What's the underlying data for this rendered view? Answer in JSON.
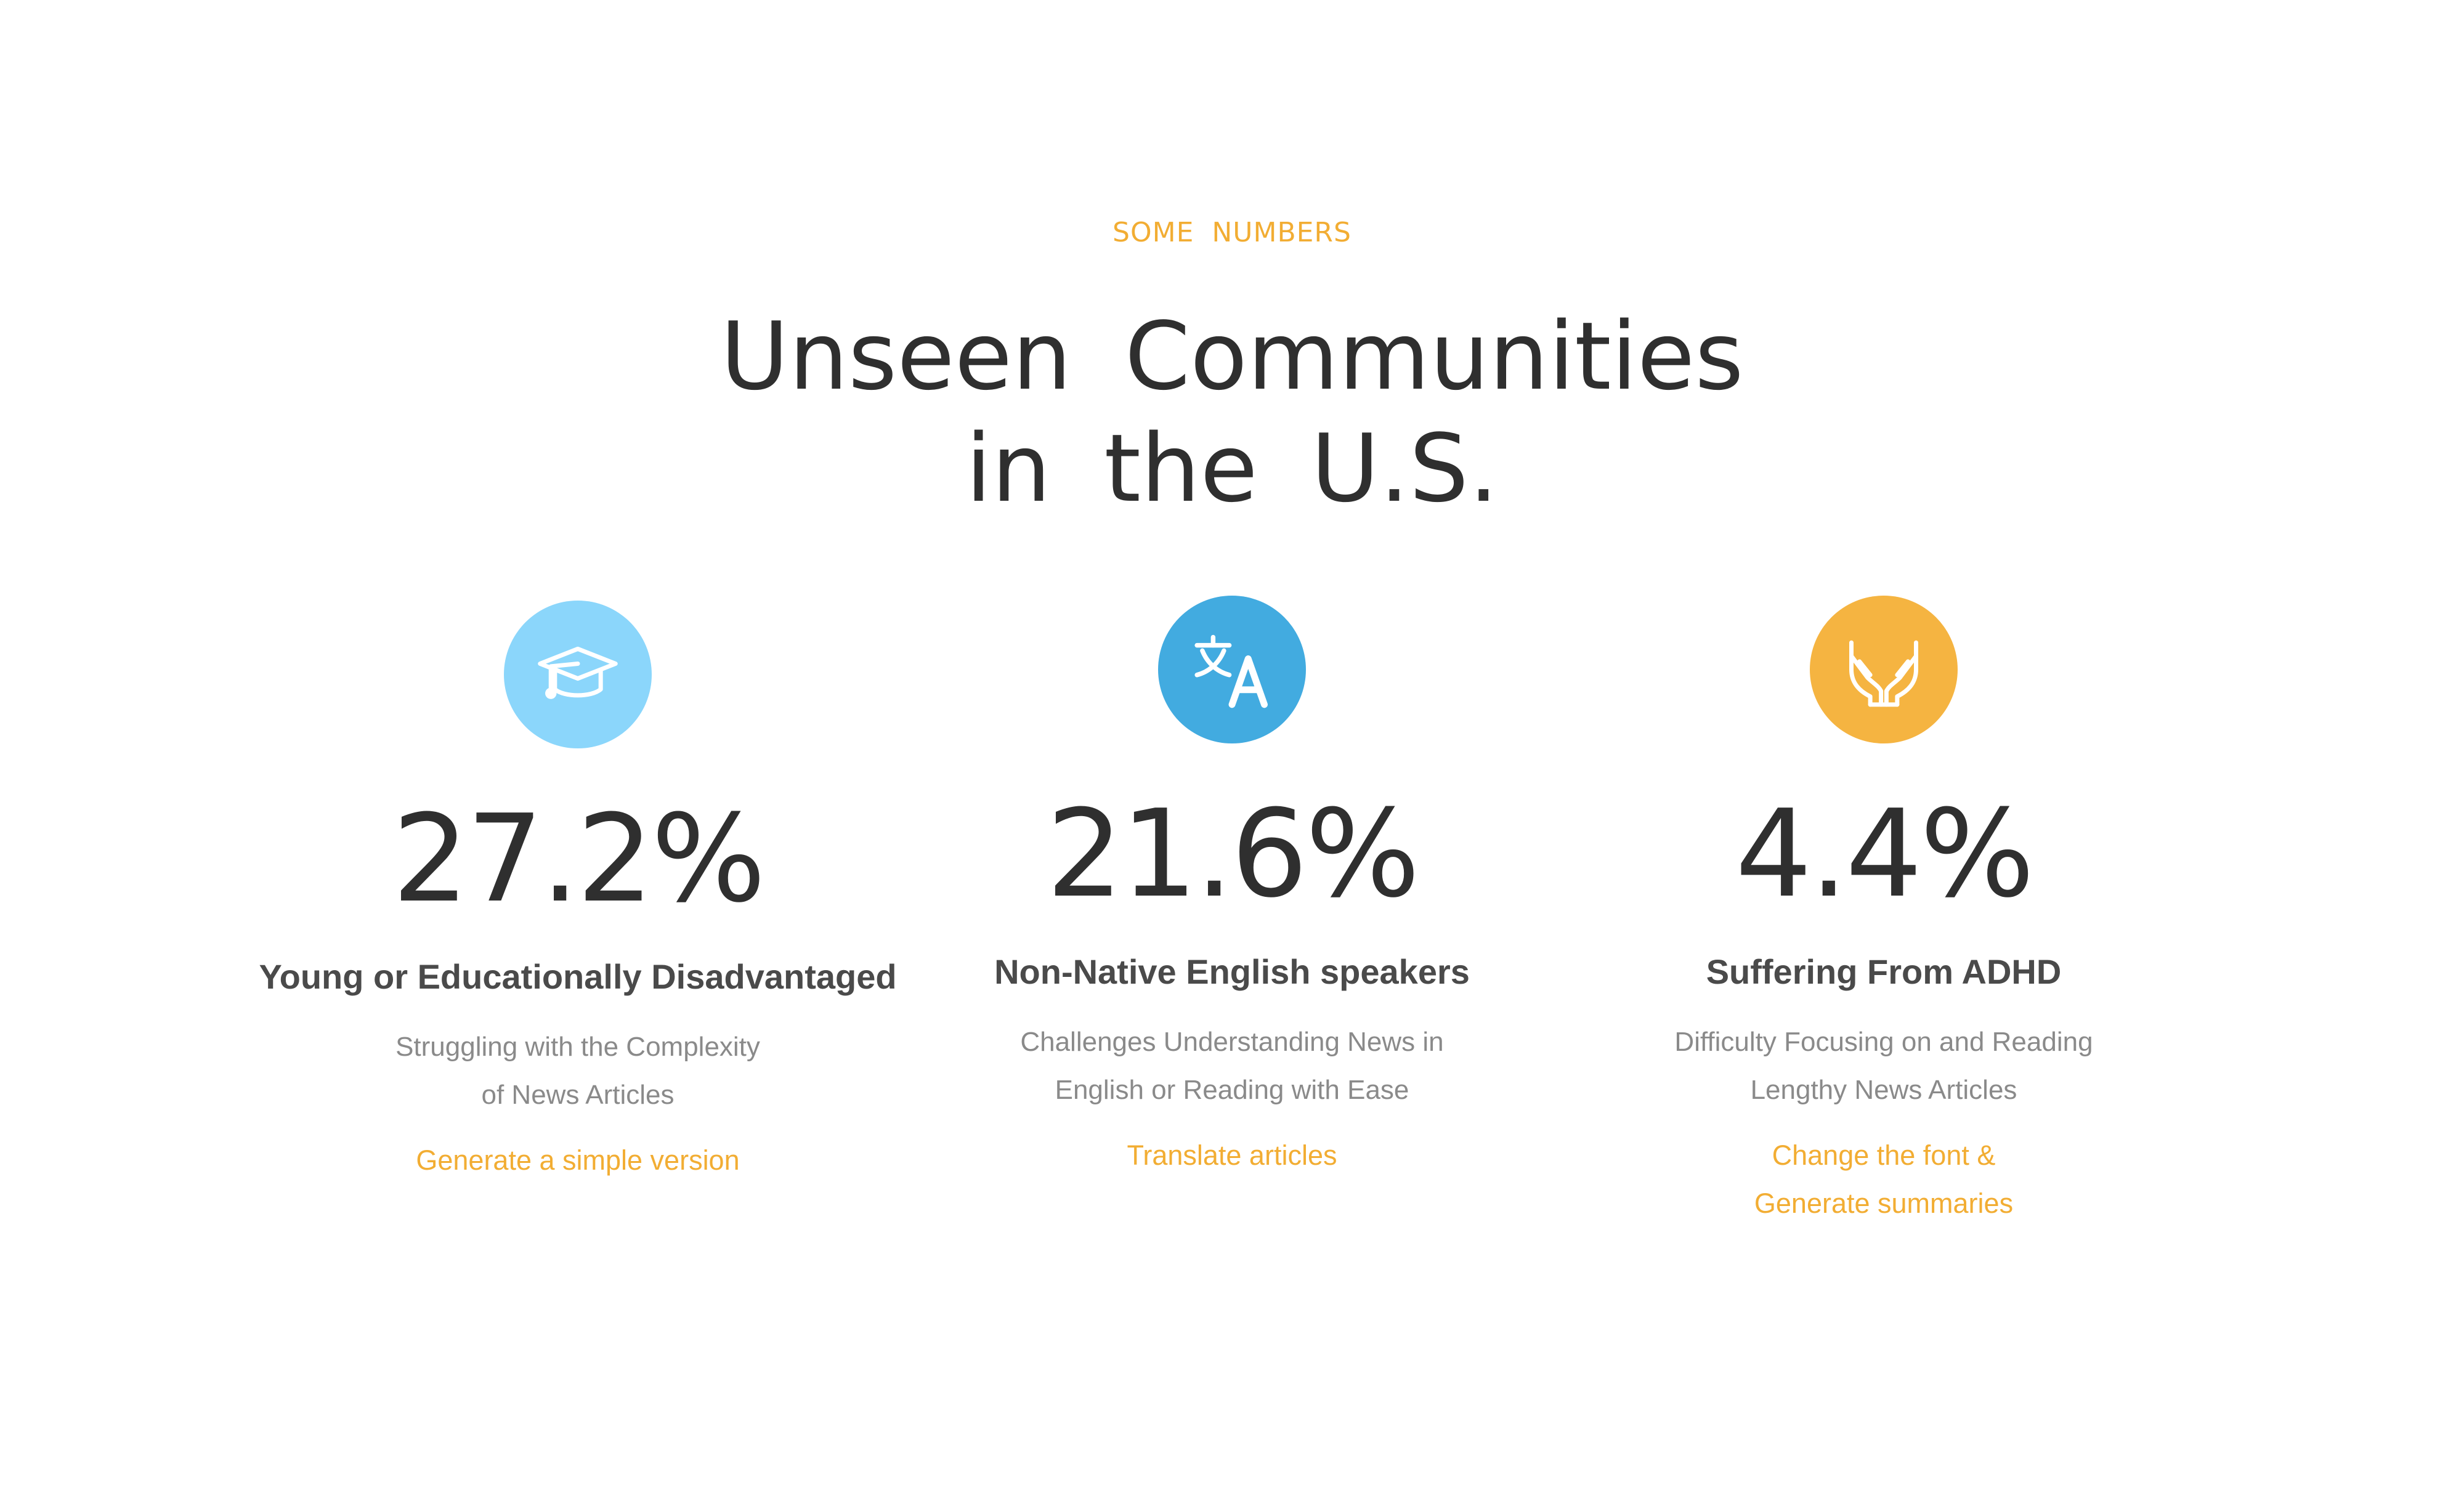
{
  "section": {
    "eyebrow": "SOME NUMBERS",
    "title_line1": "Unseen Communities",
    "title_line2": "in the U.S."
  },
  "colors": {
    "accent": "#f2ad33",
    "heading": "#2f2f2f",
    "muted": "#8a8a8a"
  },
  "stats": [
    {
      "icon": "graduation-cap-icon",
      "icon_color": "#8bd6fb",
      "value": "27.2%",
      "label": "Young or Educationally Disadvantaged",
      "desc_line1": "Struggling with the Complexity",
      "desc_line2": "of News Articles",
      "link_line1": "Generate a simple version",
      "link_line2": ""
    },
    {
      "icon": "translate-icon",
      "icon_color": "#42abe0",
      "value": "21.6%",
      "label": "Non-Native English speakers",
      "desc_line1": "Challenges Understanding News in",
      "desc_line2": "English or Reading with Ease",
      "link_line1": "Translate articles",
      "link_line2": ""
    },
    {
      "icon": "open-hands-icon",
      "icon_color": "#f5b441",
      "value": "4.4%",
      "label": "Suffering From ADHD",
      "desc_line1": "Difficulty Focusing on and Reading",
      "desc_line2": "Lengthy News Articles",
      "link_line1": "Change the font &",
      "link_line2": "Generate summaries"
    }
  ]
}
